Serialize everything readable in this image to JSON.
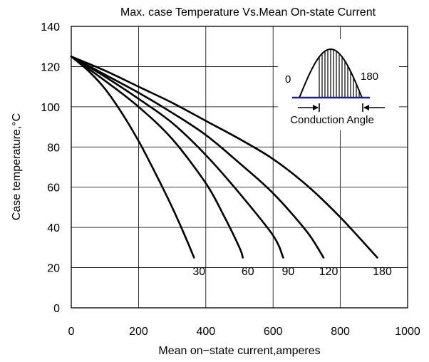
{
  "chart_data": {
    "type": "line",
    "title": "Max. case Temperature  Vs.Mean On-state  Current",
    "xlabel": "Mean on−state current,amperes",
    "ylabel": "Case temperature,°C",
    "xlim": [
      0,
      1000
    ],
    "ylim": [
      0,
      140
    ],
    "xticks": [
      "0",
      "200",
      "400",
      "600",
      "800",
      "1000"
    ],
    "yticks": [
      "0",
      "20",
      "40",
      "60",
      "80",
      "100",
      "120",
      "140"
    ],
    "grid": true,
    "series": [
      {
        "name": "30",
        "x": [
          0,
          50,
          100,
          150,
          200,
          250,
          300,
          340,
          365
        ],
        "y": [
          125,
          118,
          109,
          97,
          83,
          67,
          50,
          35,
          25
        ]
      },
      {
        "name": "60",
        "x": [
          0,
          100,
          200,
          300,
          400,
          450,
          500,
          510
        ],
        "y": [
          125,
          113,
          100,
          84,
          62,
          47,
          30,
          25
        ]
      },
      {
        "name": "90",
        "x": [
          0,
          100,
          200,
          300,
          400,
          500,
          600,
          630
        ],
        "y": [
          125,
          115,
          104,
          92,
          76,
          57,
          36,
          25
        ]
      },
      {
        "name": "120",
        "x": [
          0,
          100,
          200,
          300,
          400,
          500,
          600,
          700,
          750
        ],
        "y": [
          125,
          116,
          107,
          97,
          86,
          72,
          57,
          38,
          25
        ]
      },
      {
        "name": "180",
        "x": [
          0,
          100,
          200,
          300,
          400,
          500,
          600,
          700,
          800,
          910
        ],
        "y": [
          125,
          118,
          110,
          102,
          93,
          84,
          74,
          61,
          45,
          25
        ]
      }
    ]
  },
  "inset": {
    "label_start": "0",
    "label_end": "180",
    "caption": "Conduction Angle"
  }
}
